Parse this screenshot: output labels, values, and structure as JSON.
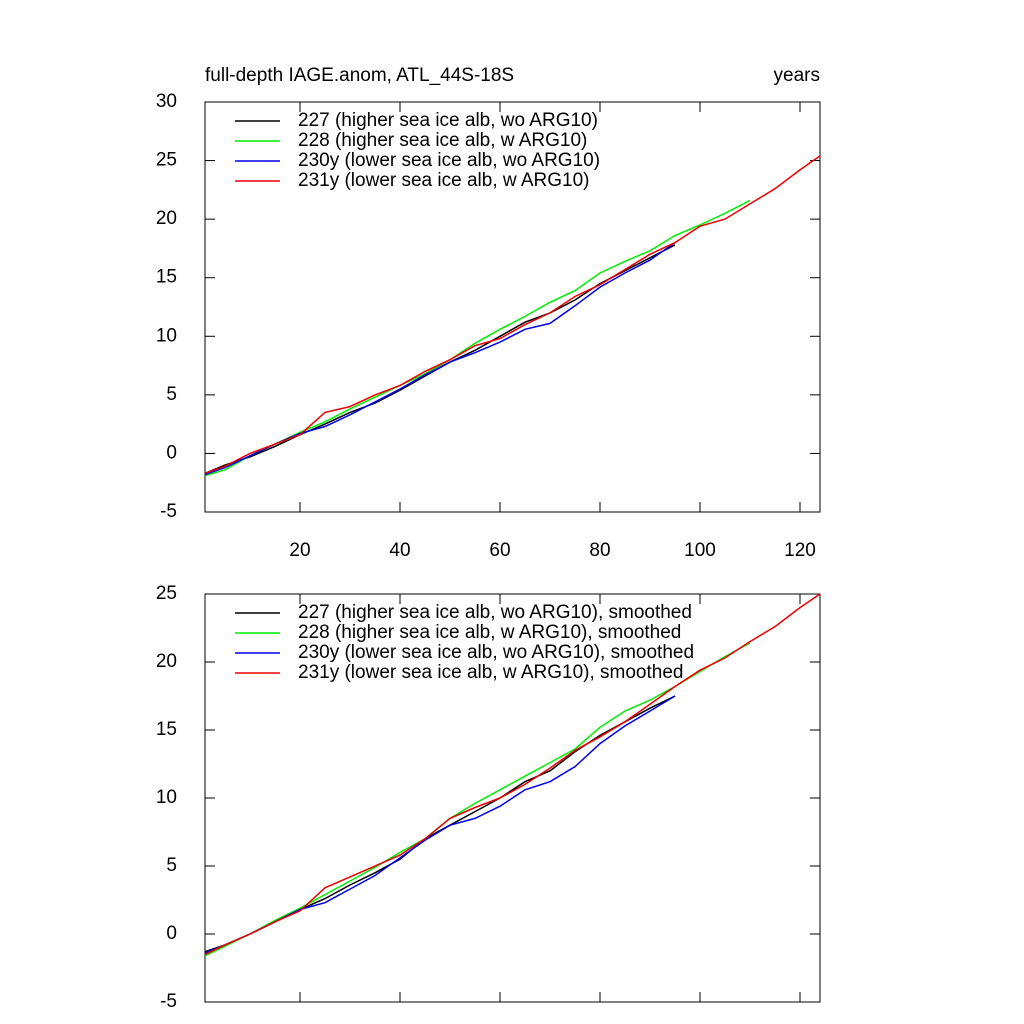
{
  "chart_data": [
    {
      "type": "line",
      "title": "full-depth IAGE.anom, ATL_44S-18S",
      "right_title": "years",
      "x": [
        1,
        5,
        10,
        15,
        20,
        25,
        30,
        35,
        40,
        45,
        50,
        55,
        60,
        65,
        70,
        75,
        80,
        85,
        90,
        95,
        100,
        105,
        110,
        115,
        120,
        124
      ],
      "xlim": [
        1,
        124
      ],
      "xticks": [
        20,
        40,
        60,
        80,
        100,
        120
      ],
      "ylim": [
        -5,
        30
      ],
      "yticks": [
        -5,
        0,
        5,
        10,
        15,
        20,
        25,
        30
      ],
      "series": [
        {
          "name": "227 (higher sea ice alb, wo ARG10)",
          "color": "#000000",
          "values": [
            -1.7,
            -1.0,
            -0.3,
            0.6,
            1.6,
            2.5,
            3.5,
            4.3,
            5.4,
            6.6,
            7.8,
            8.8,
            10.0,
            11.2,
            12.0,
            13.1,
            14.5,
            15.6,
            16.7,
            17.8,
            null,
            null,
            null,
            null,
            null,
            null
          ]
        },
        {
          "name": "228 (higher sea ice alb, w ARG10)",
          "color": "#00ee00",
          "values": [
            -1.9,
            -1.4,
            -0.2,
            0.8,
            1.8,
            2.7,
            3.8,
            4.8,
            5.8,
            6.8,
            8.0,
            9.4,
            10.6,
            11.7,
            12.9,
            13.9,
            15.4,
            16.4,
            17.3,
            18.6,
            19.5,
            20.5,
            21.6,
            null,
            null,
            null
          ]
        },
        {
          "name": "230y (lower sea ice alb, wo ARG10)",
          "color": "#0000ee",
          "values": [
            -1.8,
            -1.2,
            -0.2,
            0.8,
            1.7,
            2.3,
            3.3,
            4.4,
            5.5,
            6.7,
            7.8,
            8.6,
            9.5,
            10.6,
            11.1,
            12.6,
            14.2,
            15.4,
            16.5,
            18.0,
            null,
            null,
            null,
            null,
            null,
            null
          ]
        },
        {
          "name": "231y (lower sea ice alb, w ARG10)",
          "color": "#ee0000",
          "values": [
            -1.7,
            -1.1,
            0.0,
            0.8,
            1.6,
            3.5,
            4.0,
            5.0,
            5.8,
            7.0,
            8.0,
            9.2,
            9.8,
            11.0,
            12.0,
            13.4,
            14.4,
            15.7,
            17.0,
            18.0,
            19.4,
            20.0,
            21.3,
            22.6,
            24.2,
            25.4
          ]
        }
      ]
    },
    {
      "type": "line",
      "x": [
        1,
        5,
        10,
        15,
        20,
        25,
        30,
        35,
        40,
        45,
        50,
        55,
        60,
        65,
        70,
        75,
        80,
        85,
        90,
        95,
        100,
        105,
        110,
        115,
        120,
        124
      ],
      "xlim": [
        1,
        124
      ],
      "xticks": [
        20,
        40,
        60,
        80,
        100,
        120
      ],
      "ylim": [
        -5,
        25
      ],
      "yticks": [
        -5,
        0,
        5,
        10,
        15,
        20,
        25
      ],
      "series": [
        {
          "name": "227 (higher sea ice alb, wo ARG10), smoothed",
          "color": "#000000",
          "values": [
            -1.3,
            -0.8,
            0.0,
            0.9,
            1.8,
            2.6,
            3.6,
            4.5,
            5.5,
            7.0,
            8.0,
            9.0,
            10.0,
            11.2,
            12.0,
            13.4,
            14.6,
            15.6,
            16.6,
            17.5,
            null,
            null,
            null,
            null,
            null,
            null
          ]
        },
        {
          "name": "228 (higher sea ice alb, w ARG10), smoothed",
          "color": "#00ee00",
          "values": [
            -1.6,
            -0.9,
            0.0,
            1.0,
            1.9,
            2.9,
            3.9,
            4.9,
            6.0,
            7.0,
            8.5,
            9.6,
            10.6,
            11.6,
            12.6,
            13.6,
            15.2,
            16.4,
            17.2,
            18.2,
            19.3,
            20.4,
            21.4,
            null,
            null,
            null
          ]
        },
        {
          "name": "230y (lower sea ice alb, wo ARG10), smoothed",
          "color": "#0000ee",
          "values": [
            -1.4,
            -0.8,
            0.0,
            0.9,
            1.8,
            2.3,
            3.3,
            4.3,
            5.6,
            6.9,
            8.0,
            8.5,
            9.4,
            10.6,
            11.2,
            12.3,
            14.0,
            15.3,
            16.4,
            17.5,
            null,
            null,
            null,
            null,
            null,
            null
          ]
        },
        {
          "name": "231y (lower sea ice alb, w ARG10), smoothed",
          "color": "#ee0000",
          "values": [
            -1.5,
            -0.8,
            0.0,
            0.9,
            1.7,
            3.4,
            4.2,
            5.0,
            5.8,
            7.0,
            8.5,
            9.3,
            10.0,
            11.0,
            12.2,
            13.5,
            14.5,
            15.6,
            16.9,
            18.2,
            19.4,
            20.3,
            21.5,
            22.6,
            24.0,
            25.0
          ]
        }
      ]
    }
  ]
}
